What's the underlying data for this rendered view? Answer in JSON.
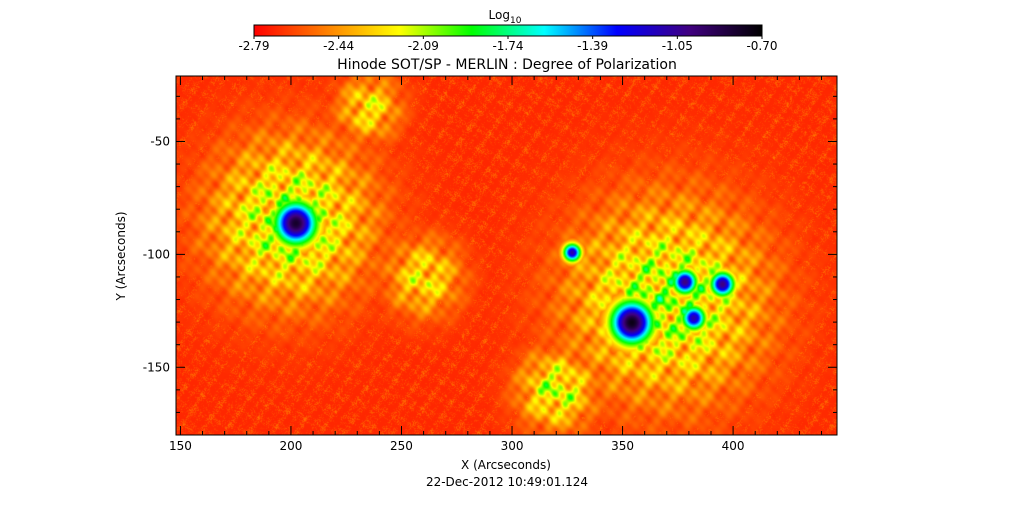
{
  "chart_data": {
    "type": "heatmap",
    "title": "Hinode SOT/SP - MERLIN : Degree of Polarization",
    "xlabel": "X (Arcseconds)",
    "ylabel": "Y (Arcseconds)",
    "timestamp": "22-Dec-2012 10:49:01.124",
    "xlim": [
      148,
      447
    ],
    "ylim": [
      -180,
      -21
    ],
    "x_ticks": [
      150,
      200,
      250,
      300,
      350,
      400
    ],
    "y_ticks": [
      -50,
      -100,
      -150
    ],
    "colorbar": {
      "label_base": "Log",
      "label_sub": "10",
      "range": [
        -2.79,
        -0.7
      ],
      "ticks": [
        "-2.79",
        "-2.44",
        "-2.09",
        "-1.74",
        "-1.39",
        "-1.05",
        "-0.70"
      ],
      "colors": [
        "#ff0000",
        "#ff8000",
        "#ffff00",
        "#00ff00",
        "#00ffff",
        "#0000ff",
        "#400080",
        "#000000"
      ]
    },
    "background_level": -2.7,
    "features": [
      {
        "name": "sunspot-left",
        "x": 202,
        "y": -86,
        "peak": -0.8,
        "sigma": 7
      },
      {
        "name": "sunspot-right",
        "x": 354,
        "y": -130,
        "peak": -0.75,
        "sigma": 7
      },
      {
        "name": "pore-1",
        "x": 378,
        "y": -112,
        "peak": -1.0,
        "sigma": 4
      },
      {
        "name": "pore-2",
        "x": 395,
        "y": -113,
        "peak": -1.0,
        "sigma": 4
      },
      {
        "name": "pore-3",
        "x": 382,
        "y": -128,
        "peak": -1.1,
        "sigma": 4
      },
      {
        "name": "pore-4",
        "x": 327,
        "y": -99,
        "peak": -1.1,
        "sigma": 3
      },
      {
        "name": "plage-left",
        "x": 200,
        "y": -85,
        "peak": -1.6,
        "sigma": 25
      },
      {
        "name": "plage-right",
        "x": 370,
        "y": -120,
        "peak": -1.6,
        "sigma": 30
      },
      {
        "name": "plage-lower",
        "x": 320,
        "y": -160,
        "peak": -1.7,
        "sigma": 12
      },
      {
        "name": "network-middle",
        "x": 260,
        "y": -110,
        "peak": -1.9,
        "sigma": 12
      },
      {
        "name": "network-top",
        "x": 235,
        "y": -35,
        "peak": -1.9,
        "sigma": 10
      }
    ]
  }
}
